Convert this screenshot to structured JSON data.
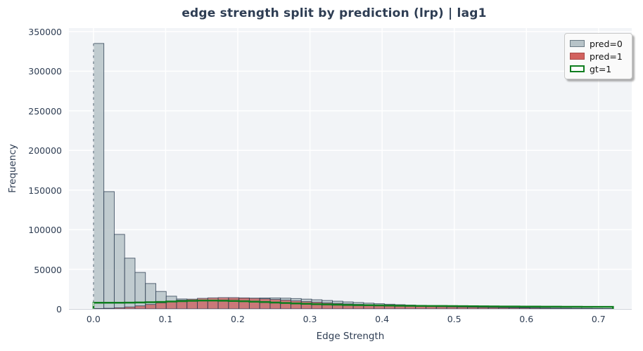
{
  "title": "edge strength split by prediction (lrp) | lag1",
  "axes": {
    "x_label": "Edge Strength",
    "y_label": "Frequency",
    "x_ticks": [
      "0.0",
      "0.1",
      "0.2",
      "0.3",
      "0.4",
      "0.5",
      "0.6",
      "0.7"
    ],
    "y_ticks": [
      "0",
      "50000",
      "100000",
      "150000",
      "200000",
      "250000",
      "300000",
      "350000"
    ]
  },
  "legend": {
    "items": [
      {
        "label": "pred=0",
        "swatch": "gray-fill"
      },
      {
        "label": "pred=1",
        "swatch": "red-fill"
      },
      {
        "label": "gt=1",
        "swatch": "green-outline"
      }
    ]
  },
  "colors": {
    "text": "#2e3d53",
    "plot_bg": "#f2f4f7",
    "gridline": "#ffffff",
    "bar_edge": "rgba(45,62,82,0.85)",
    "pred0_fill": "#b7c3c8",
    "pred1_fill": "#cd5c5c",
    "gt1_stroke": "#0f7d1f"
  },
  "chart_data": {
    "type": "bar",
    "subtype": "overlaid-histogram",
    "title": "edge strength split by prediction (lrp) | lag1",
    "xlabel": "Edge Strength",
    "ylabel": "Frequency",
    "bin_start": 0.0,
    "bin_width": 0.0144,
    "n_bins": 50,
    "xlim": [
      -0.034,
      0.746
    ],
    "ylim": [
      0,
      354400
    ],
    "grid": true,
    "legend_position": "upper right",
    "vline_x": 0.0,
    "series": [
      {
        "name": "pred=0",
        "style": "filled",
        "color": "#b7c3c8",
        "values": [
          335000,
          148000,
          94000,
          64000,
          46000,
          32000,
          22000,
          16000,
          12500,
          11000,
          10500,
          10800,
          11500,
          12300,
          13000,
          13500,
          13800,
          13800,
          13500,
          13000,
          12300,
          11500,
          10600,
          9700,
          8800,
          8000,
          7200,
          6500,
          5900,
          5300,
          4800,
          4300,
          3900,
          3500,
          3100,
          2800,
          2500,
          2200,
          2000,
          1800,
          1600,
          1400,
          1200,
          1100,
          950,
          850,
          750,
          650,
          550,
          480
        ]
      },
      {
        "name": "pred=1",
        "style": "filled",
        "color": "#cd5c5c",
        "values": [
          500,
          800,
          1400,
          2400,
          3800,
          5600,
          7600,
          9500,
          11000,
          12300,
          13300,
          13900,
          14200,
          14200,
          13900,
          13400,
          12700,
          11900,
          11000,
          10100,
          9200,
          8400,
          7600,
          6900,
          6300,
          5700,
          5200,
          4700,
          4300,
          3900,
          3600,
          3300,
          3000,
          2750,
          2500,
          2300,
          2100,
          1900,
          1700,
          1500,
          1350,
          1200,
          1050,
          900,
          780,
          660,
          550,
          450,
          360,
          280
        ]
      },
      {
        "name": "gt=1",
        "style": "step-outline",
        "color": "#0f7d1f",
        "values": [
          7700,
          7700,
          7800,
          7900,
          8100,
          8400,
          8800,
          9300,
          9800,
          10200,
          10500,
          10500,
          10300,
          10000,
          9600,
          9100,
          8600,
          8000,
          7400,
          6900,
          6400,
          6000,
          5600,
          5300,
          5000,
          4800,
          4600,
          4400,
          4200,
          4000,
          3900,
          3800,
          3700,
          3600,
          3500,
          3400,
          3300,
          3200,
          3100,
          3000,
          2950,
          2900,
          2850,
          2800,
          2750,
          2700,
          2650,
          2600,
          2550,
          2500
        ]
      }
    ]
  }
}
